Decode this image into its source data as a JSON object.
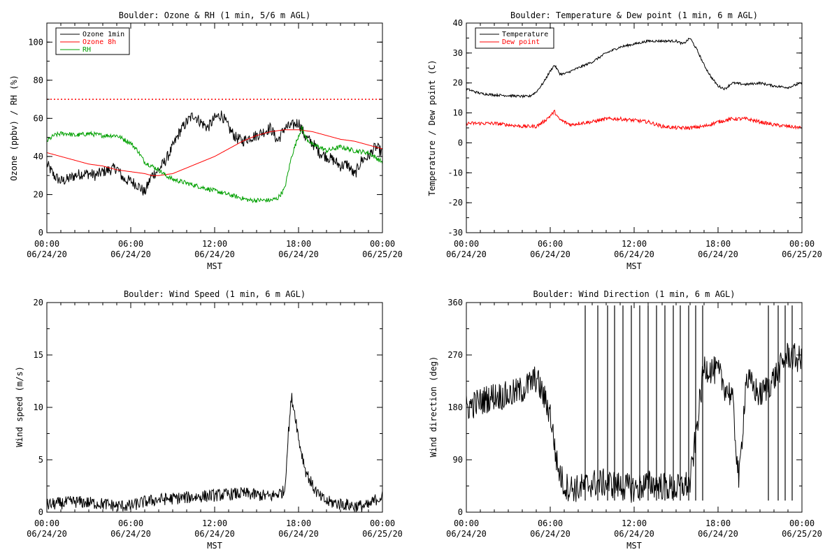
{
  "chart_data": [
    {
      "type": "line",
      "title": "Boulder: Ozone & RH (1 min, 5/6 m AGL)",
      "xlabel": "MST",
      "ylabel": "Ozone (ppbv) / RH (%)",
      "xlim": [
        0,
        24
      ],
      "ylim": [
        0,
        110
      ],
      "yticks": [
        0,
        20,
        40,
        60,
        80,
        100
      ],
      "reference_line": {
        "value": 70,
        "color": "#ff0000",
        "style": "dotted"
      },
      "legend_position": "top-left",
      "series": [
        {
          "name": "Ozone 1min",
          "color": "#000000",
          "x": [
            0,
            0.5,
            1,
            1.5,
            2,
            2.5,
            3,
            3.5,
            4,
            4.5,
            5,
            5.5,
            6,
            6.5,
            7,
            7.5,
            8,
            8.5,
            9,
            9.5,
            10,
            10.5,
            11,
            11.5,
            12,
            12.5,
            13,
            13.5,
            14,
            14.5,
            15,
            15.5,
            16,
            16.5,
            17,
            17.5,
            18,
            18.5,
            19,
            19.5,
            20,
            20.5,
            21,
            21.5,
            22,
            22.5,
            23,
            23.5,
            24
          ],
          "y": [
            36,
            30,
            27,
            28,
            30,
            31,
            31,
            30,
            32,
            33,
            34,
            28,
            27,
            25,
            21,
            30,
            33,
            38,
            45,
            53,
            58,
            62,
            58,
            55,
            60,
            62,
            55,
            50,
            48,
            50,
            51,
            53,
            55,
            48,
            55,
            56,
            58,
            50,
            47,
            42,
            40,
            38,
            35,
            36,
            30,
            38,
            40,
            45,
            42
          ],
          "noise": 3
        },
        {
          "name": "Ozone 8h",
          "color": "#ff0000",
          "x": [
            0,
            1,
            2,
            3,
            4,
            5,
            6,
            7,
            7.5,
            8,
            9,
            10,
            11,
            12,
            13,
            14,
            15,
            16,
            17,
            18,
            19,
            20,
            21,
            22,
            23,
            24
          ],
          "y": [
            42,
            40,
            38,
            36,
            35,
            33,
            32,
            31,
            30,
            30,
            31,
            34,
            37,
            40,
            44,
            48,
            51,
            53,
            54,
            54,
            53,
            51,
            49,
            48,
            46,
            44
          ],
          "noise": 0
        },
        {
          "name": "RH",
          "color": "#00a000",
          "x": [
            0,
            0.5,
            1,
            1.5,
            2,
            3,
            4,
            5,
            5.5,
            6,
            6.5,
            7,
            7.5,
            8,
            8.5,
            9,
            9.5,
            10,
            10.5,
            11,
            11.5,
            12,
            12.5,
            13,
            13.5,
            14,
            14.5,
            15,
            15.5,
            16,
            16.5,
            17,
            17.5,
            18,
            18.25,
            18.5,
            19,
            19.5,
            20,
            20.5,
            21,
            22,
            23,
            24
          ],
          "y": [
            48,
            51,
            52,
            52,
            51,
            52,
            51,
            51,
            49,
            47,
            43,
            37,
            35,
            33,
            30,
            28,
            27,
            26,
            25,
            24,
            23,
            22,
            21,
            20,
            19,
            18,
            17,
            17,
            17,
            17,
            18,
            23,
            40,
            51,
            55,
            50,
            46,
            45,
            43,
            44,
            45,
            43,
            42,
            37
          ],
          "noise": 1.2
        }
      ]
    },
    {
      "type": "line",
      "title": "Boulder: Temperature & Dew point (1 min, 6 m AGL)",
      "xlabel": "MST",
      "ylabel": "Temperature / Dew point (C)",
      "xlim": [
        0,
        24
      ],
      "ylim": [
        -30,
        40
      ],
      "yticks": [
        -30,
        -20,
        -10,
        0,
        10,
        20,
        30,
        40
      ],
      "legend_position": "top-left",
      "series": [
        {
          "name": "Temperature",
          "color": "#000000",
          "x": [
            0,
            1,
            2,
            3,
            4,
            4.5,
            5,
            5.5,
            6,
            6.3,
            6.7,
            7,
            8,
            9,
            10,
            11,
            12,
            13,
            14,
            15,
            15.5,
            16,
            16.5,
            17,
            17.5,
            18,
            18.5,
            19,
            20,
            21,
            22,
            23,
            24
          ],
          "y": [
            18,
            16.5,
            16,
            15.8,
            15.5,
            15.5,
            17,
            20,
            24,
            26,
            23,
            23,
            25,
            27,
            30,
            32,
            33,
            34,
            34,
            34,
            33,
            35,
            31,
            26,
            22,
            19,
            18,
            20,
            19.5,
            20,
            19,
            18.5,
            20
          ],
          "noise": 0.4
        },
        {
          "name": "Dew point",
          "color": "#ff0000",
          "x": [
            0,
            1,
            2,
            3,
            4,
            5,
            5.5,
            6,
            6.3,
            6.6,
            7,
            7.5,
            8,
            9,
            10,
            11,
            12,
            13,
            14,
            15,
            16,
            17,
            18,
            19,
            20,
            21,
            22,
            23,
            24
          ],
          "y": [
            6.5,
            6.5,
            6.5,
            6,
            5.5,
            5.5,
            7,
            9,
            10.5,
            8,
            7,
            6,
            6.5,
            7,
            8,
            8,
            7.5,
            7,
            5.5,
            5,
            5,
            5.5,
            7,
            8,
            8,
            7,
            6,
            5.5,
            5
          ],
          "noise": 0.6
        }
      ]
    },
    {
      "type": "line",
      "title": "Boulder: Wind Speed (1 min, 6 m AGL)",
      "xlabel": "MST",
      "ylabel": "Wind speed (m/s)",
      "xlim": [
        0,
        24
      ],
      "ylim": [
        0,
        20
      ],
      "yticks": [
        0,
        5,
        10,
        15,
        20
      ],
      "series": [
        {
          "name": "",
          "color": "#000000",
          "x": [
            0,
            2,
            4,
            5,
            6,
            7,
            8,
            10,
            12,
            14,
            16,
            17,
            17.3,
            17.5,
            17.8,
            18,
            18.5,
            19,
            19.5,
            20,
            21,
            22,
            23,
            23.5,
            24
          ],
          "y": [
            0.7,
            1.0,
            0.8,
            0.6,
            0.6,
            1.0,
            1.2,
            1.4,
            1.6,
            1.8,
            1.5,
            2.0,
            8.0,
            11.0,
            9.0,
            7.0,
            4.0,
            2.5,
            1.5,
            1.0,
            0.8,
            0.6,
            0.6,
            1.2,
            1.5
          ],
          "noise": 0.6
        }
      ]
    },
    {
      "type": "line",
      "title": "Boulder: Wind Direction (1 min, 6 m AGL)",
      "xlabel": "MST",
      "ylabel": "Wind direction (deg)",
      "xlim": [
        0,
        24
      ],
      "ylim": [
        0,
        360
      ],
      "yticks": [
        0,
        90,
        180,
        270,
        360
      ],
      "series": [
        {
          "name": "",
          "color": "#000000",
          "x": [
            0,
            1,
            2,
            3,
            4,
            5,
            5.5,
            6,
            6.5,
            7,
            8,
            9,
            10,
            11,
            12,
            13,
            14,
            15,
            16,
            17,
            18,
            18.5,
            19,
            19.5,
            20,
            21,
            22,
            23,
            24
          ],
          "y": [
            180,
            190,
            200,
            200,
            210,
            230,
            200,
            170,
            80,
            45,
            40,
            50,
            50,
            45,
            40,
            50,
            45,
            40,
            50,
            250,
            240,
            215,
            200,
            50,
            230,
            200,
            230,
            270,
            260
          ],
          "noise": 25
        }
      ]
    }
  ],
  "x_ticks": {
    "times": [
      "00:00",
      "06:00",
      "12:00",
      "18:00",
      "00:00"
    ],
    "dates": [
      "06/24/20",
      "06/24/20",
      "06/24/20",
      "06/24/20",
      "06/25/20"
    ]
  },
  "colors": {
    "ozone": "#000000",
    "ozone8h": "#ff0000",
    "rh": "#00a000",
    "temp": "#000000",
    "dew": "#ff0000"
  }
}
